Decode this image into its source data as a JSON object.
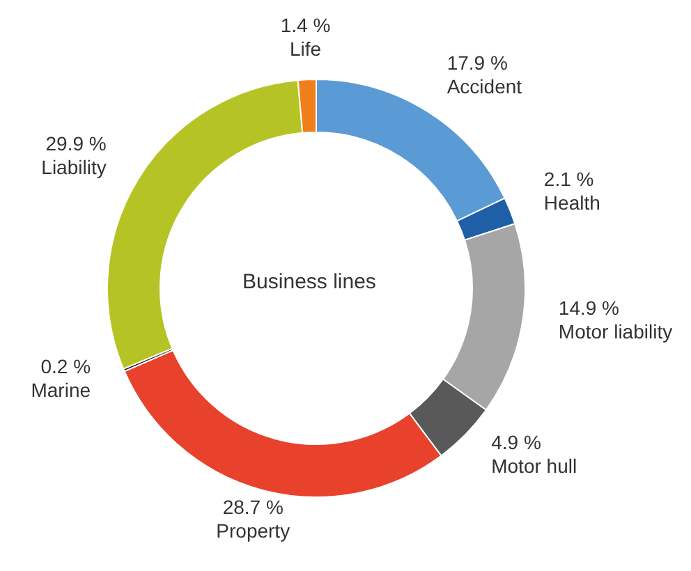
{
  "chart_data": {
    "type": "donut",
    "title": "Business lines",
    "categories": [
      "Accident",
      "Health",
      "Motor liability",
      "Motor hull",
      "Property",
      "Marine",
      "Liability",
      "Life"
    ],
    "values": [
      17.9,
      2.1,
      14.9,
      4.9,
      28.7,
      0.2,
      29.9,
      1.4
    ],
    "value_labels": [
      "17.9 %",
      "2.1 %",
      "14.9 %",
      "4.9 %",
      "28.7 %",
      "0.2 %",
      "29.9 %",
      "1.4 %"
    ],
    "colors": [
      "#5b9bd5",
      "#1f5fa8",
      "#a6a6a6",
      "#595959",
      "#e8412c",
      "#1a1a1a",
      "#b5c424",
      "#f07f1b"
    ]
  }
}
